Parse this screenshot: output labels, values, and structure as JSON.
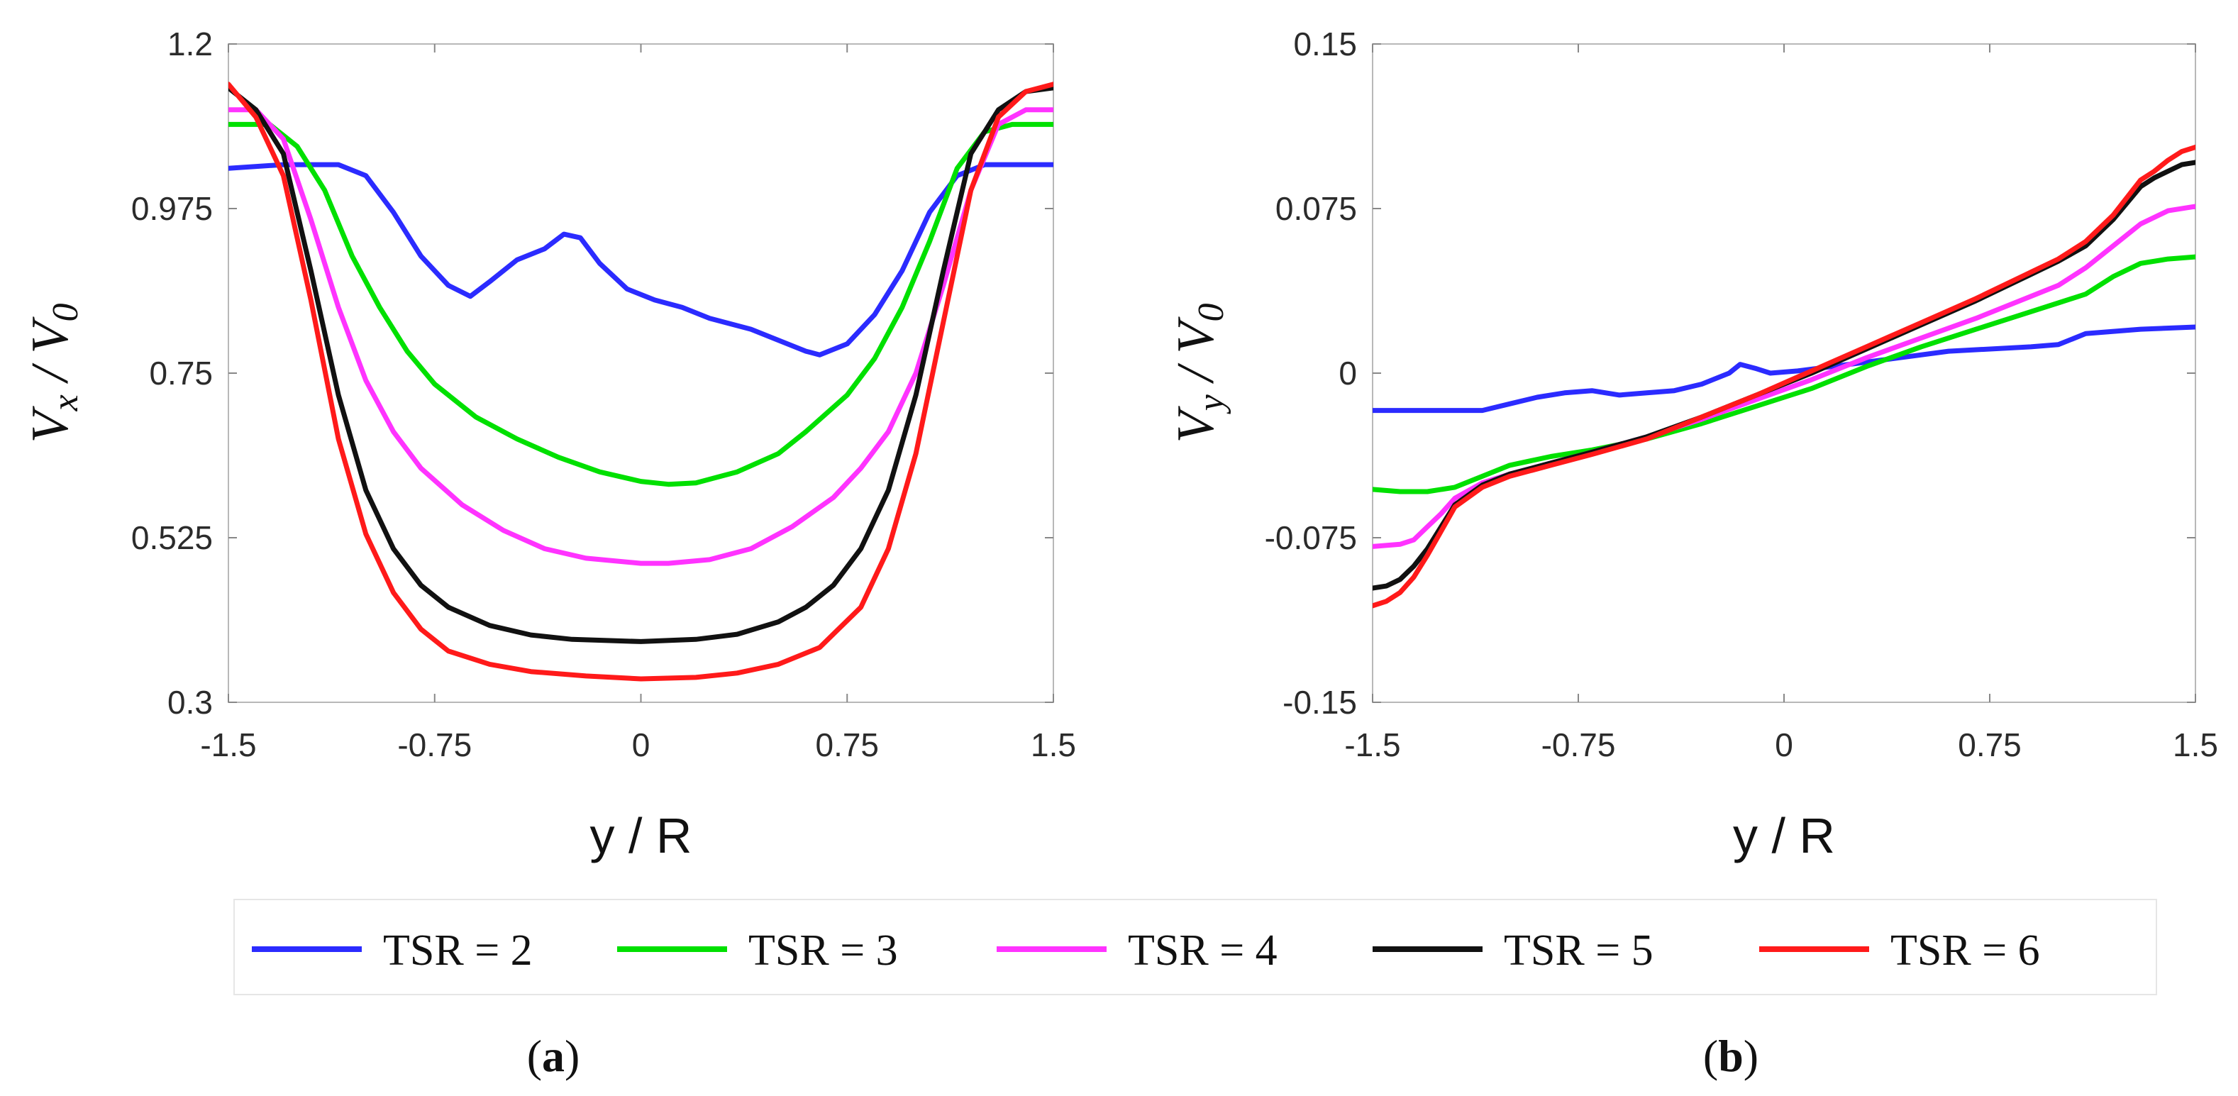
{
  "chart_data": [
    {
      "type": "line",
      "panel_label": "a",
      "title": "",
      "xlabel": "y / R",
      "ylabel": {
        "main": "V",
        "main_sub": "x",
        "sep": " / ",
        "den": "V",
        "den_sub": "0"
      },
      "xlim": [
        -1.5,
        1.5
      ],
      "ylim": [
        0.3,
        1.2
      ],
      "xticks": [
        "-1.5",
        "-0.75",
        "0",
        "0.75",
        "1.5"
      ],
      "yticks": [
        "0.3",
        "0.525",
        "0.75",
        "0.975",
        "1.2"
      ],
      "series": [
        {
          "name": "TSR = 2",
          "color": "#2b2bff",
          "x": [
            -1.5,
            -1.3,
            -1.1,
            -1.0,
            -0.9,
            -0.8,
            -0.7,
            -0.62,
            -0.55,
            -0.45,
            -0.35,
            -0.28,
            -0.22,
            -0.15,
            -0.05,
            0.05,
            0.15,
            0.25,
            0.4,
            0.5,
            0.6,
            0.65,
            0.75,
            0.85,
            0.95,
            1.05,
            1.15,
            1.25,
            1.35,
            1.5
          ],
          "y": [
            1.03,
            1.035,
            1.035,
            1.02,
            0.97,
            0.91,
            0.87,
            0.855,
            0.875,
            0.905,
            0.92,
            0.94,
            0.935,
            0.9,
            0.865,
            0.85,
            0.84,
            0.825,
            0.81,
            0.795,
            0.78,
            0.775,
            0.79,
            0.83,
            0.89,
            0.97,
            1.02,
            1.035,
            1.035,
            1.035
          ]
        },
        {
          "name": "TSR = 3",
          "color": "#00e000",
          "x": [
            -1.5,
            -1.35,
            -1.25,
            -1.15,
            -1.05,
            -0.95,
            -0.85,
            -0.75,
            -0.6,
            -0.45,
            -0.3,
            -0.15,
            0,
            0.1,
            0.2,
            0.35,
            0.5,
            0.6,
            0.75,
            0.85,
            0.95,
            1.05,
            1.15,
            1.25,
            1.35,
            1.5
          ],
          "y": [
            1.09,
            1.09,
            1.06,
            1.0,
            0.91,
            0.84,
            0.78,
            0.735,
            0.69,
            0.66,
            0.635,
            0.615,
            0.602,
            0.598,
            0.6,
            0.615,
            0.64,
            0.67,
            0.72,
            0.77,
            0.84,
            0.93,
            1.03,
            1.08,
            1.09,
            1.09
          ]
        },
        {
          "name": "TSR = 4",
          "color": "#ff33ff",
          "x": [
            -1.5,
            -1.4,
            -1.3,
            -1.2,
            -1.1,
            -1.0,
            -0.9,
            -0.8,
            -0.65,
            -0.5,
            -0.35,
            -0.2,
            0,
            0.1,
            0.25,
            0.4,
            0.55,
            0.7,
            0.8,
            0.9,
            1.0,
            1.1,
            1.2,
            1.3,
            1.4,
            1.5
          ],
          "y": [
            1.11,
            1.11,
            1.07,
            0.96,
            0.84,
            0.74,
            0.67,
            0.62,
            0.57,
            0.535,
            0.51,
            0.497,
            0.49,
            0.49,
            0.495,
            0.51,
            0.54,
            0.58,
            0.62,
            0.67,
            0.75,
            0.87,
            1.0,
            1.09,
            1.11,
            1.11
          ]
        },
        {
          "name": "TSR = 5",
          "color": "#111111",
          "x": [
            -1.5,
            -1.4,
            -1.3,
            -1.2,
            -1.1,
            -1.0,
            -0.9,
            -0.8,
            -0.7,
            -0.55,
            -0.4,
            -0.25,
            0,
            0.2,
            0.35,
            0.5,
            0.6,
            0.7,
            0.8,
            0.9,
            1.0,
            1.1,
            1.2,
            1.3,
            1.4,
            1.5
          ],
          "y": [
            1.14,
            1.11,
            1.05,
            0.89,
            0.72,
            0.59,
            0.51,
            0.46,
            0.43,
            0.405,
            0.392,
            0.386,
            0.383,
            0.386,
            0.393,
            0.41,
            0.43,
            0.46,
            0.51,
            0.59,
            0.72,
            0.89,
            1.05,
            1.11,
            1.135,
            1.14
          ]
        },
        {
          "name": "TSR = 6",
          "color": "#ff1a1a",
          "x": [
            -1.5,
            -1.4,
            -1.3,
            -1.2,
            -1.1,
            -1.0,
            -0.9,
            -0.8,
            -0.7,
            -0.55,
            -0.4,
            -0.2,
            0,
            0.2,
            0.35,
            0.5,
            0.65,
            0.8,
            0.9,
            1.0,
            1.1,
            1.2,
            1.3,
            1.4,
            1.5
          ],
          "y": [
            1.145,
            1.1,
            1.02,
            0.85,
            0.66,
            0.53,
            0.45,
            0.4,
            0.37,
            0.352,
            0.342,
            0.336,
            0.332,
            0.334,
            0.34,
            0.352,
            0.375,
            0.43,
            0.51,
            0.64,
            0.82,
            1.0,
            1.1,
            1.135,
            1.145
          ]
        }
      ]
    },
    {
      "type": "line",
      "panel_label": "b",
      "title": "",
      "xlabel": "y / R",
      "ylabel": {
        "main": "V",
        "main_sub": "y",
        "sep": " / ",
        "den": "V",
        "den_sub": "0"
      },
      "xlim": [
        -1.5,
        1.5
      ],
      "ylim": [
        -0.15,
        0.15
      ],
      "xticks": [
        "-1.5",
        "-0.75",
        "0",
        "0.75",
        "1.5"
      ],
      "yticks": [
        "-0.15",
        "-0.075",
        "0",
        "0.075",
        "0.15"
      ],
      "series": [
        {
          "name": "TSR = 2",
          "color": "#2b2bff",
          "x": [
            -1.5,
            -1.3,
            -1.1,
            -1.0,
            -0.9,
            -0.8,
            -0.7,
            -0.6,
            -0.5,
            -0.4,
            -0.3,
            -0.2,
            -0.16,
            -0.1,
            -0.05,
            0.05,
            0.3,
            0.6,
            0.9,
            1.0,
            1.1,
            1.3,
            1.5
          ],
          "y": [
            -0.017,
            -0.017,
            -0.017,
            -0.014,
            -0.011,
            -0.009,
            -0.008,
            -0.01,
            -0.009,
            -0.008,
            -0.005,
            0.0,
            0.004,
            0.002,
            0.0,
            0.001,
            0.005,
            0.01,
            0.012,
            0.013,
            0.018,
            0.02,
            0.021
          ]
        },
        {
          "name": "TSR = 3",
          "color": "#00e000",
          "x": [
            -1.5,
            -1.4,
            -1.3,
            -1.2,
            -1.1,
            -1.0,
            -0.85,
            -0.7,
            -0.5,
            -0.3,
            -0.1,
            0.1,
            0.3,
            0.5,
            0.7,
            0.85,
            1.0,
            1.1,
            1.2,
            1.3,
            1.4,
            1.5
          ],
          "y": [
            -0.053,
            -0.054,
            -0.054,
            -0.052,
            -0.047,
            -0.042,
            -0.038,
            -0.035,
            -0.03,
            -0.023,
            -0.015,
            -0.007,
            0.003,
            0.012,
            0.02,
            0.026,
            0.032,
            0.036,
            0.044,
            0.05,
            0.052,
            0.053
          ]
        },
        {
          "name": "TSR = 4",
          "color": "#ff33ff",
          "x": [
            -1.5,
            -1.4,
            -1.35,
            -1.3,
            -1.25,
            -1.2,
            -1.1,
            -1.0,
            -0.85,
            -0.7,
            -0.5,
            -0.3,
            -0.1,
            0.1,
            0.3,
            0.5,
            0.7,
            0.9,
            1.0,
            1.1,
            1.2,
            1.3,
            1.4,
            1.5
          ],
          "y": [
            -0.079,
            -0.078,
            -0.076,
            -0.07,
            -0.064,
            -0.057,
            -0.05,
            -0.046,
            -0.041,
            -0.036,
            -0.029,
            -0.021,
            -0.012,
            -0.003,
            0.007,
            0.016,
            0.025,
            0.035,
            0.04,
            0.048,
            0.058,
            0.068,
            0.074,
            0.076
          ]
        },
        {
          "name": "TSR = 5",
          "color": "#111111",
          "x": [
            -1.5,
            -1.45,
            -1.4,
            -1.35,
            -1.3,
            -1.25,
            -1.2,
            -1.1,
            -1.0,
            -0.85,
            -0.7,
            -0.5,
            -0.3,
            -0.1,
            0.1,
            0.3,
            0.5,
            0.7,
            0.9,
            1.0,
            1.1,
            1.2,
            1.3,
            1.35,
            1.4,
            1.45,
            1.5
          ],
          "y": [
            -0.098,
            -0.097,
            -0.094,
            -0.088,
            -0.08,
            -0.07,
            -0.06,
            -0.051,
            -0.046,
            -0.041,
            -0.036,
            -0.029,
            -0.02,
            -0.01,
            0.0,
            0.011,
            0.022,
            0.033,
            0.045,
            0.051,
            0.058,
            0.07,
            0.085,
            0.089,
            0.092,
            0.095,
            0.096
          ]
        },
        {
          "name": "TSR = 6",
          "color": "#ff1a1a",
          "x": [
            -1.5,
            -1.45,
            -1.4,
            -1.35,
            -1.3,
            -1.25,
            -1.2,
            -1.1,
            -1.0,
            -0.85,
            -0.7,
            -0.5,
            -0.3,
            -0.1,
            0.1,
            0.3,
            0.5,
            0.7,
            0.9,
            1.0,
            1.1,
            1.2,
            1.3,
            1.35,
            1.4,
            1.45,
            1.5
          ],
          "y": [
            -0.106,
            -0.104,
            -0.1,
            -0.093,
            -0.083,
            -0.072,
            -0.061,
            -0.052,
            -0.047,
            -0.042,
            -0.037,
            -0.03,
            -0.02,
            -0.01,
            0.001,
            0.012,
            0.023,
            0.034,
            0.046,
            0.052,
            0.06,
            0.072,
            0.088,
            0.092,
            0.097,
            0.101,
            0.103
          ]
        }
      ]
    }
  ],
  "legend": [
    {
      "label": "TSR = 2",
      "color": "#2b2bff"
    },
    {
      "label": "TSR = 3",
      "color": "#00e000"
    },
    {
      "label": "TSR = 4",
      "color": "#ff33ff"
    },
    {
      "label": "TSR = 5",
      "color": "#111111"
    },
    {
      "label": "TSR = 6",
      "color": "#ff1a1a"
    }
  ]
}
